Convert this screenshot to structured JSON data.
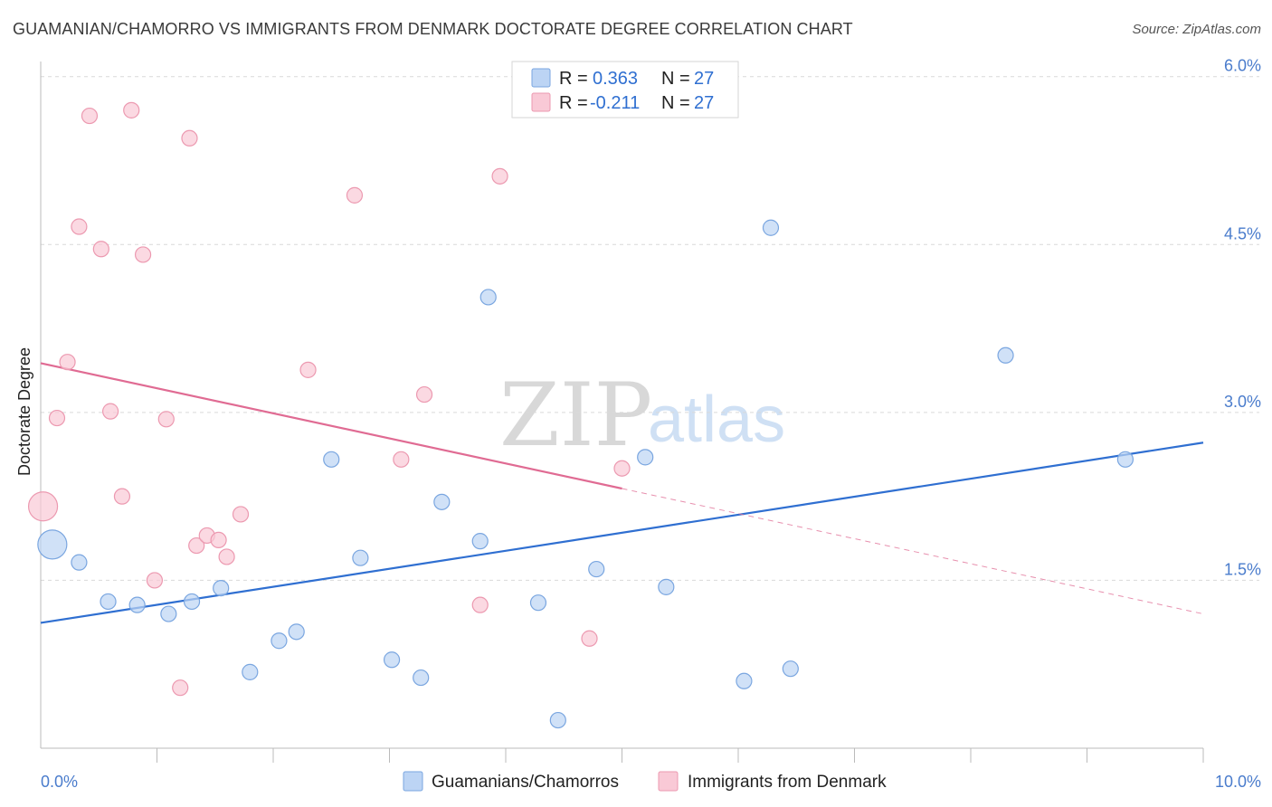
{
  "header": {
    "title": "GUAMANIAN/CHAMORRO VS IMMIGRANTS FROM DENMARK DOCTORATE DEGREE CORRELATION CHART",
    "source": "Source: ZipAtlas.com"
  },
  "watermark": {
    "zip": "ZIP",
    "atlas": "atlas"
  },
  "colors": {
    "blue_fill": "#bcd4f4",
    "blue_stroke": "#7aa6e0",
    "blue_line": "#2f6fd1",
    "pink_fill": "#f9c9d6",
    "pink_stroke": "#ec99b0",
    "pink_line": "#e06b93",
    "grid": "#d9d9d9",
    "tick_text": "#4a7ccc"
  },
  "legend_top": {
    "rows": [
      {
        "r_label": "R = ",
        "r_value": "0.363",
        "n_label": "N = ",
        "n_value": "27",
        "series": "blue"
      },
      {
        "r_label": "R = ",
        "r_value": "-0.211",
        "n_label": "N = ",
        "n_value": "27",
        "series": "pink"
      }
    ]
  },
  "chart_data": {
    "type": "scatter",
    "title": "GUAMANIAN/CHAMORRO VS IMMIGRANTS FROM DENMARK DOCTORATE DEGREE CORRELATION CHART",
    "xlabel": "",
    "ylabel": "Doctorate Degree",
    "xlim": [
      0,
      10
    ],
    "ylim": [
      0,
      6.2
    ],
    "x_tick_labels": [
      {
        "value": 0,
        "label": "0.0%"
      },
      {
        "value": 10,
        "label": "10.0%"
      }
    ],
    "y_ticks": [
      {
        "value": 1.5,
        "label": "1.5%"
      },
      {
        "value": 3.0,
        "label": "3.0%"
      },
      {
        "value": 4.5,
        "label": "4.5%"
      },
      {
        "value": 6.0,
        "label": "6.0%"
      }
    ],
    "x_minor_ticks": [
      1,
      2,
      3,
      4,
      5,
      6,
      7,
      8,
      9,
      10
    ],
    "series": [
      {
        "name": "Guamanians/Chamorros",
        "color": "blue",
        "trend": {
          "x0": 0,
          "y0": 1.12,
          "x1": 10,
          "y1": 2.73,
          "dashed_from": null
        },
        "points": [
          {
            "x": 0.1,
            "y": 1.82,
            "size": "large"
          },
          {
            "x": 0.33,
            "y": 1.66
          },
          {
            "x": 0.58,
            "y": 1.31
          },
          {
            "x": 0.83,
            "y": 1.28
          },
          {
            "x": 1.1,
            "y": 1.2
          },
          {
            "x": 1.3,
            "y": 1.31
          },
          {
            "x": 1.55,
            "y": 1.43
          },
          {
            "x": 1.8,
            "y": 0.68
          },
          {
            "x": 2.05,
            "y": 0.96
          },
          {
            "x": 2.2,
            "y": 1.04
          },
          {
            "x": 2.5,
            "y": 2.58
          },
          {
            "x": 2.75,
            "y": 1.7
          },
          {
            "x": 3.02,
            "y": 0.79
          },
          {
            "x": 3.27,
            "y": 0.63
          },
          {
            "x": 3.45,
            "y": 2.2
          },
          {
            "x": 3.78,
            "y": 1.85
          },
          {
            "x": 3.85,
            "y": 4.03
          },
          {
            "x": 4.28,
            "y": 1.3
          },
          {
            "x": 4.45,
            "y": 0.25
          },
          {
            "x": 4.78,
            "y": 1.6
          },
          {
            "x": 5.2,
            "y": 2.6
          },
          {
            "x": 5.38,
            "y": 1.44
          },
          {
            "x": 6.05,
            "y": 0.6
          },
          {
            "x": 6.28,
            "y": 4.65
          },
          {
            "x": 6.45,
            "y": 0.71
          },
          {
            "x": 8.3,
            "y": 3.51
          },
          {
            "x": 9.33,
            "y": 2.58
          }
        ]
      },
      {
        "name": "Immigrants from Denmark",
        "color": "pink",
        "trend": {
          "x0": 0,
          "y0": 3.44,
          "x1": 10,
          "y1": 1.2,
          "dashed_from": 5.0
        },
        "points": [
          {
            "x": 0.02,
            "y": 2.16,
            "size": "large"
          },
          {
            "x": 0.14,
            "y": 2.95
          },
          {
            "x": 0.23,
            "y": 3.45
          },
          {
            "x": 0.33,
            "y": 4.66
          },
          {
            "x": 0.42,
            "y": 5.65
          },
          {
            "x": 0.52,
            "y": 4.46
          },
          {
            "x": 0.6,
            "y": 3.01
          },
          {
            "x": 0.7,
            "y": 2.25
          },
          {
            "x": 0.78,
            "y": 5.7
          },
          {
            "x": 0.88,
            "y": 4.41
          },
          {
            "x": 0.98,
            "y": 1.5
          },
          {
            "x": 1.08,
            "y": 2.94
          },
          {
            "x": 1.2,
            "y": 0.54
          },
          {
            "x": 1.28,
            "y": 5.45
          },
          {
            "x": 1.34,
            "y": 1.81
          },
          {
            "x": 1.43,
            "y": 1.9
          },
          {
            "x": 1.53,
            "y": 1.86
          },
          {
            "x": 1.6,
            "y": 1.71
          },
          {
            "x": 1.72,
            "y": 2.09
          },
          {
            "x": 2.3,
            "y": 3.38
          },
          {
            "x": 2.7,
            "y": 4.94
          },
          {
            "x": 3.1,
            "y": 2.58
          },
          {
            "x": 3.3,
            "y": 3.16
          },
          {
            "x": 3.78,
            "y": 1.28
          },
          {
            "x": 3.95,
            "y": 5.11
          },
          {
            "x": 4.72,
            "y": 0.98
          },
          {
            "x": 5.0,
            "y": 2.5
          }
        ]
      }
    ],
    "legend": [
      {
        "name": "Guamanians/Chamorros",
        "color": "blue"
      },
      {
        "name": "Immigrants from Denmark",
        "color": "pink"
      }
    ]
  }
}
